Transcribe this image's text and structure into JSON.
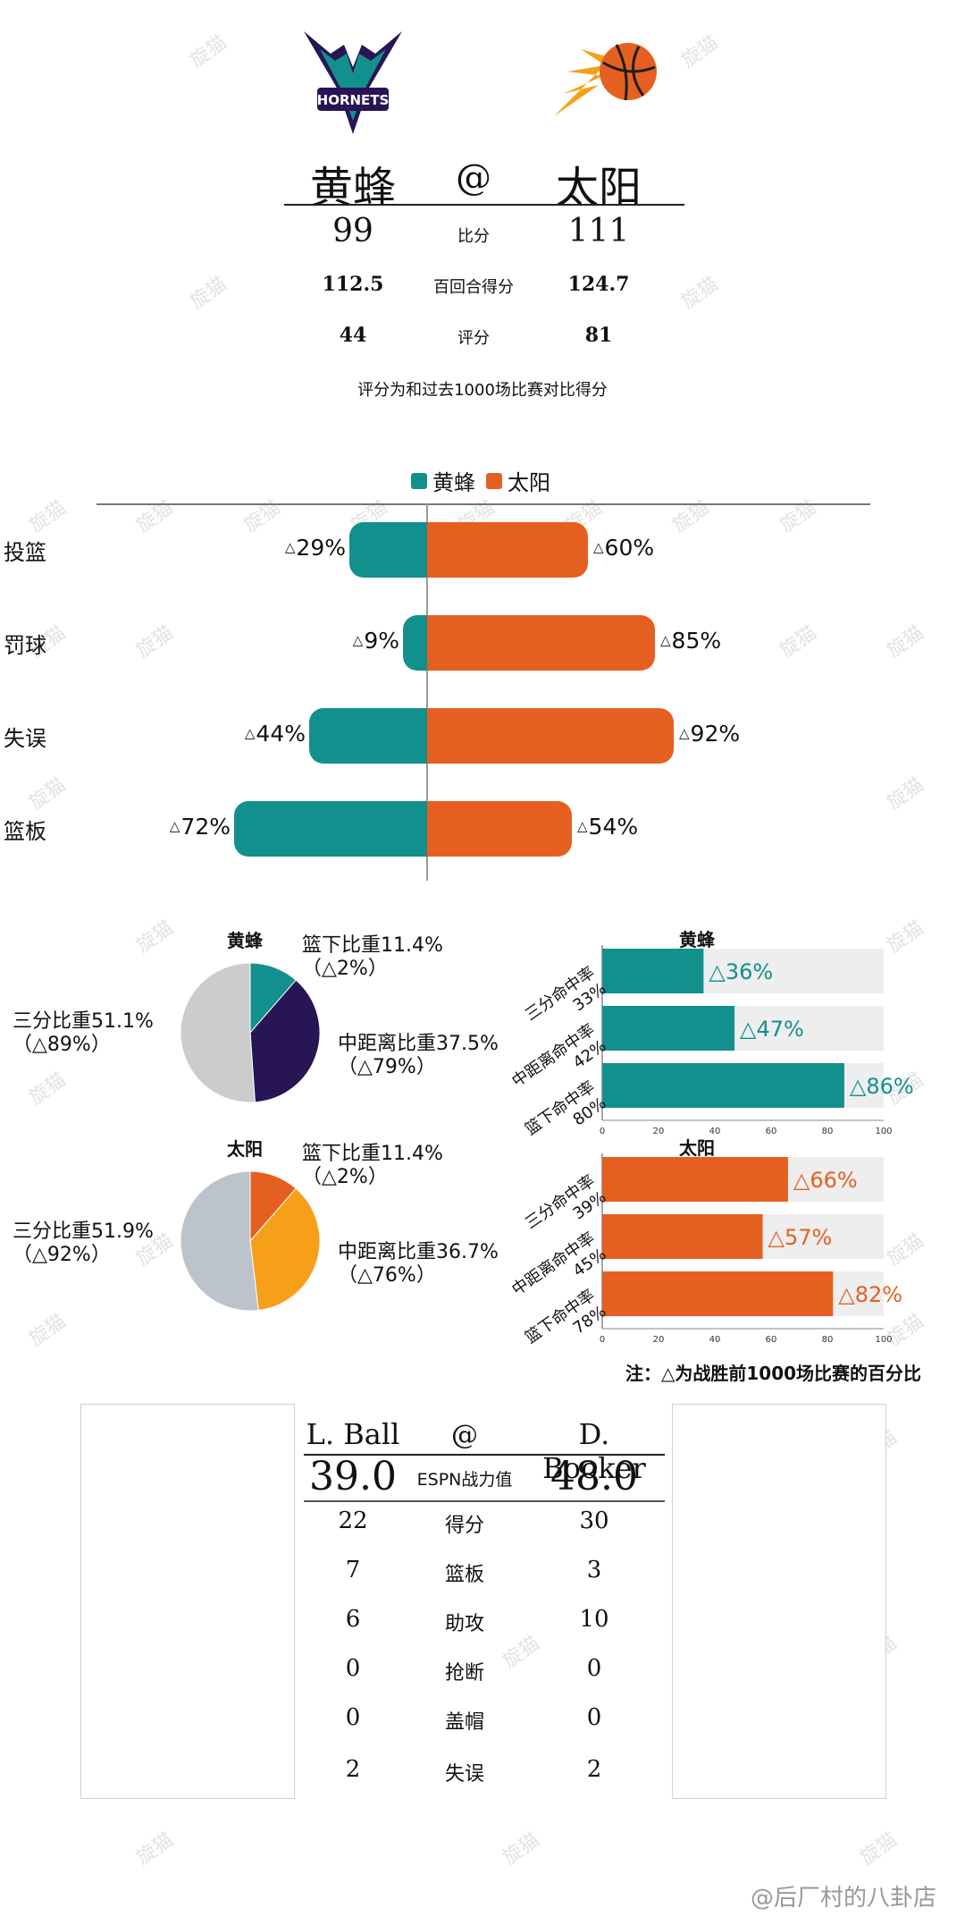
{
  "colors": {
    "hornets": "#12908e",
    "suns": "#e56020",
    "hornets_dark": "#281556",
    "hornets_mid": "#12908e",
    "pie_gray": "#cccccc",
    "suns_orange2": "#f6a01a",
    "suns_gray": "#bcc3cb",
    "track": "#eeeeee"
  },
  "header": {
    "home": "黄蜂",
    "at": "@",
    "away": "太阳",
    "rows": [
      {
        "home": "99",
        "label": "比分",
        "away": "111"
      },
      {
        "home": "112.5",
        "label": "百回合得分",
        "away": "124.7"
      },
      {
        "home": "44",
        "label": "评分",
        "away": "81"
      }
    ],
    "note": "评分为和过去1000场比赛对比得分"
  },
  "watermark": "旋猫",
  "chart_data": [
    {
      "type": "bar",
      "orientation": "diverging-horizontal",
      "legend": [
        "黄蜂",
        "太阳"
      ],
      "categories": [
        "投篮",
        "罚球",
        "失误",
        "篮板"
      ],
      "series": [
        {
          "name": "黄蜂",
          "values": [
            29,
            9,
            44,
            72
          ],
          "labels": [
            "29%",
            "9%",
            "44%",
            "72%"
          ]
        },
        {
          "name": "太阳",
          "values": [
            60,
            85,
            92,
            54
          ],
          "labels": [
            "60%",
            "85%",
            "92%",
            "54%"
          ]
        }
      ],
      "tri": "△"
    },
    {
      "type": "pie",
      "title": "黄蜂",
      "slices": [
        {
          "name": "篮下比重",
          "value": 11.4,
          "label": "篮下比重11.4%",
          "sub": "（△2%）"
        },
        {
          "name": "中距离比重",
          "value": 37.5,
          "label": "中距离比重37.5%",
          "sub": "（△79%）"
        },
        {
          "name": "三分比重",
          "value": 51.1,
          "label": "三分比重51.1%",
          "sub": "（△89%）"
        }
      ]
    },
    {
      "type": "bar",
      "title": "黄蜂",
      "categories": [
        "三分命中率",
        "中距离命中率",
        "篮下命中率"
      ],
      "cat_values": [
        "33%",
        "42%",
        "80%"
      ],
      "values": [
        36,
        47,
        86
      ],
      "labels": [
        "△36%",
        "△47%",
        "△86%"
      ],
      "xlim": [
        0,
        100
      ],
      "xticks": [
        "0",
        "20",
        "40",
        "60",
        "80",
        "100"
      ]
    },
    {
      "type": "pie",
      "title": "太阳",
      "slices": [
        {
          "name": "篮下比重",
          "value": 11.4,
          "label": "篮下比重11.4%",
          "sub": "（△2%）"
        },
        {
          "name": "中距离比重",
          "value": 36.7,
          "label": "中距离比重36.7%",
          "sub": "（△76%）"
        },
        {
          "name": "三分比重",
          "value": 51.9,
          "label": "三分比重51.9%",
          "sub": "（△92%）"
        }
      ]
    },
    {
      "type": "bar",
      "title": "太阳",
      "categories": [
        "三分命中率",
        "中距离命中率",
        "篮下命中率"
      ],
      "cat_values": [
        "39%",
        "45%",
        "78%"
      ],
      "values": [
        66,
        57,
        82
      ],
      "labels": [
        "△66%",
        "△57%",
        "△82%"
      ],
      "xlim": [
        0,
        100
      ],
      "xticks": [
        "0",
        "20",
        "40",
        "60",
        "80",
        "100"
      ]
    }
  ],
  "footnote": "注：△为战胜前1000场比赛的百分比",
  "players": {
    "home": "L. Ball",
    "at": "@",
    "away": "D. Booker",
    "espn": {
      "home": "39.0",
      "label": "ESPN战力值",
      "away": "48.0"
    },
    "rows": [
      {
        "home": "22",
        "label": "得分",
        "away": "30"
      },
      {
        "home": "7",
        "label": "篮板",
        "away": "3"
      },
      {
        "home": "6",
        "label": "助攻",
        "away": "10"
      },
      {
        "home": "0",
        "label": "抢断",
        "away": "0"
      },
      {
        "home": "0",
        "label": "盖帽",
        "away": "0"
      },
      {
        "home": "2",
        "label": "失误",
        "away": "2"
      }
    ]
  },
  "credit": "@后厂村的八卦店"
}
